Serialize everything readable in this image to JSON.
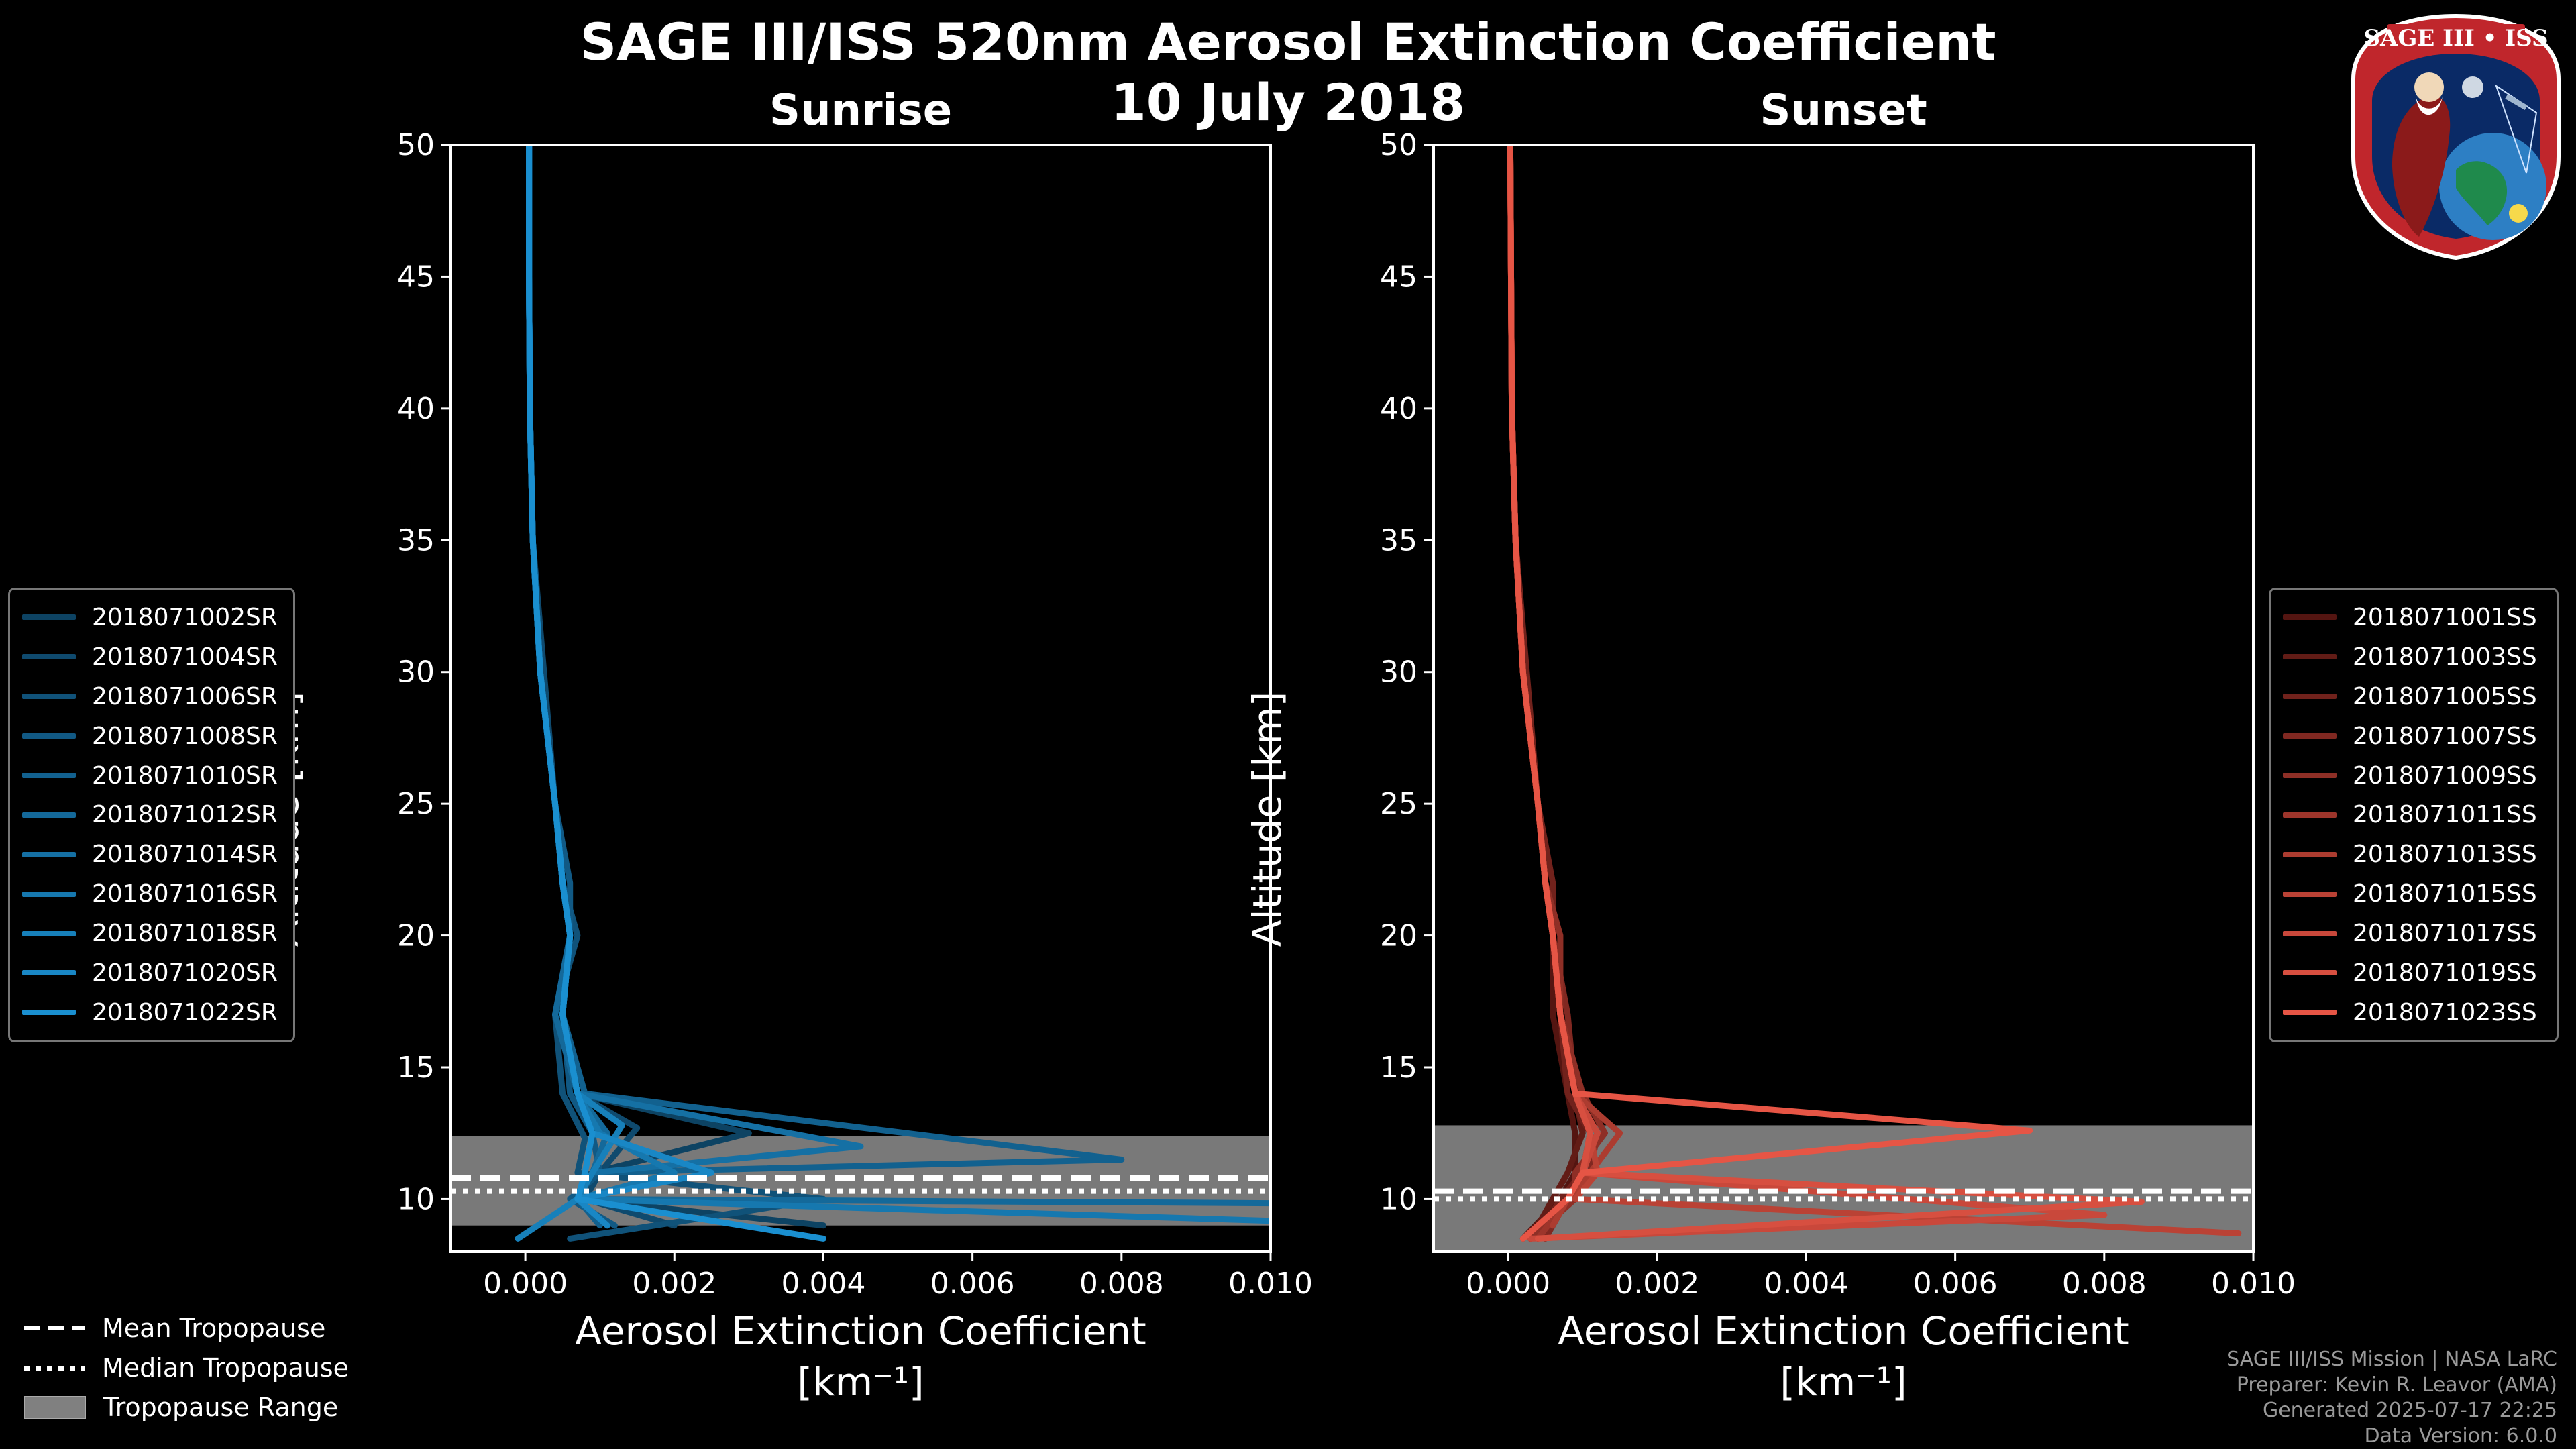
{
  "header": {
    "title": "SAGE III/ISS 520nm Aerosol Extinction Coefficient",
    "date": "10 July 2018"
  },
  "logo": {
    "text": "SAGE III • ISS"
  },
  "colors": {
    "sunrise": "#1a8fd0",
    "sunset": "#e65545",
    "tropopause_range": "#808080"
  },
  "chart_data": [
    {
      "type": "line",
      "title": "Sunrise",
      "xlabel": "Aerosol Extinction Coefficient",
      "xlabel_units": "[km⁻¹]",
      "ylabel": "Altitude [km]",
      "xlim": [
        -0.001,
        0.01
      ],
      "ylim": [
        8,
        50
      ],
      "xticks": [
        "0.000",
        "0.002",
        "0.004",
        "0.006",
        "0.008",
        "0.010"
      ],
      "yticks": [
        "10",
        "15",
        "20",
        "25",
        "30",
        "35",
        "40",
        "45",
        "50"
      ],
      "tropopause": {
        "mean": 10.8,
        "median": 10.3,
        "range": [
          9.0,
          12.4
        ]
      },
      "legend": [
        "2018071002SR",
        "2018071004SR",
        "2018071006SR",
        "2018071008SR",
        "2018071010SR",
        "2018071012SR",
        "2018071014SR",
        "2018071016SR",
        "2018071018SR",
        "2018071020SR",
        "2018071022SR"
      ],
      "series": [
        {
          "name": "2018071002SR",
          "x": [
            5e-05,
            5e-05,
            6e-05,
            0.0001,
            0.0002,
            0.0004,
            0.0005,
            0.0006,
            0.0004,
            0.0007,
            0.003,
            0.0009,
            0.0007,
            0.004
          ],
          "y": [
            50,
            45,
            40,
            35,
            30,
            25,
            22,
            20,
            17,
            14,
            12.5,
            11,
            10,
            9
          ]
        },
        {
          "name": "2018071004SR",
          "x": [
            5e-05,
            5e-05,
            6e-05,
            0.0001,
            0.00025,
            0.0004,
            0.0005,
            0.0006,
            0.0005,
            0.0007,
            0.0015,
            0.001,
            0.0008,
            0.002
          ],
          "y": [
            50,
            45,
            40,
            35,
            30,
            25,
            22,
            20,
            17,
            14,
            12.7,
            11,
            10,
            9
          ]
        },
        {
          "name": "2018071006SR",
          "x": [
            5e-05,
            5e-05,
            6e-05,
            0.0001,
            0.0002,
            0.0004,
            0.0005,
            0.0007,
            0.0004,
            0.0005,
            0.0008,
            0.0007,
            0.004,
            0.0006
          ],
          "y": [
            50,
            45,
            40,
            35,
            30,
            25,
            22,
            20,
            17,
            14,
            12.3,
            11,
            10,
            8.5
          ]
        },
        {
          "name": "2018071008SR",
          "x": [
            5e-05,
            5e-05,
            6e-05,
            0.0001,
            0.0002,
            0.0004,
            0.0006,
            0.0006,
            0.0005,
            0.0006,
            0.0009,
            0.001,
            0.0006,
            0.0012
          ],
          "y": [
            50,
            45,
            40,
            35,
            30,
            25,
            22,
            20,
            17,
            14,
            12.5,
            11,
            10,
            9
          ]
        },
        {
          "name": "2018071010SR",
          "x": [
            5e-05,
            5e-05,
            6e-05,
            0.0001,
            0.0002,
            0.0004,
            0.0005,
            0.0006,
            0.0005,
            0.0008,
            0.008,
            0.0009,
            0.0007,
            0.001
          ],
          "y": [
            50,
            45,
            40,
            35,
            30,
            25,
            22,
            20,
            17,
            14,
            11.5,
            11,
            10,
            9
          ]
        },
        {
          "name": "2018071012SR",
          "x": [
            5e-05,
            5e-05,
            6e-05,
            0.0001,
            0.0002,
            0.0004,
            0.0005,
            0.0006,
            0.0004,
            0.0007,
            0.0011,
            0.0009,
            0.0007,
            0.0125
          ],
          "y": [
            50,
            45,
            40,
            35,
            30,
            25,
            22,
            20,
            17,
            14,
            12.5,
            11,
            10,
            9.8
          ]
        },
        {
          "name": "2018071014SR",
          "x": [
            5e-05,
            5e-05,
            6e-05,
            0.0001,
            0.0002,
            0.0004,
            0.0005,
            0.0006,
            0.0005,
            0.0007,
            0.0045,
            0.0009,
            0.0007,
            0.0011
          ],
          "y": [
            50,
            45,
            40,
            35,
            30,
            25,
            22,
            20,
            17,
            14,
            12,
            11,
            10,
            9
          ]
        },
        {
          "name": "2018071016SR",
          "x": [
            5e-05,
            5e-05,
            6e-05,
            0.0001,
            0.0002,
            0.0004,
            0.0005,
            0.0006,
            0.0005,
            0.0007,
            0.001,
            0.002,
            0.0007,
            0.012
          ],
          "y": [
            50,
            45,
            40,
            35,
            30,
            25,
            22,
            20,
            17,
            14,
            12.5,
            11,
            10,
            9
          ]
        },
        {
          "name": "2018071018SR",
          "x": [
            5e-05,
            5e-05,
            6e-05,
            0.0001,
            0.0002,
            0.0004,
            0.0005,
            0.0006,
            0.0005,
            0.0007,
            0.0013,
            0.0009,
            0.0007,
            -0.0001
          ],
          "y": [
            50,
            45,
            40,
            35,
            30,
            25,
            22,
            20,
            17,
            14,
            12.8,
            11,
            10,
            8.5
          ]
        },
        {
          "name": "2018071020SR",
          "x": [
            5e-05,
            5e-05,
            6e-05,
            0.0001,
            0.0002,
            0.0004,
            0.0005,
            0.0006,
            0.0005,
            0.0007,
            0.0009,
            0.0025,
            0.0007,
            0.0011
          ],
          "y": [
            50,
            45,
            40,
            35,
            30,
            25,
            22,
            20,
            17,
            14,
            12.5,
            11,
            10,
            9
          ]
        },
        {
          "name": "2018071022SR",
          "x": [
            5e-05,
            5e-05,
            6e-05,
            0.0001,
            0.0002,
            0.0004,
            0.0005,
            0.0006,
            0.0005,
            0.0007,
            0.0009,
            0.0008,
            0.0007,
            0.004
          ],
          "y": [
            50,
            45,
            40,
            35,
            30,
            25,
            22,
            20,
            17,
            14,
            12.5,
            11,
            10,
            8.5
          ]
        }
      ]
    },
    {
      "type": "line",
      "title": "Sunset",
      "xlabel": "Aerosol Extinction Coefficient",
      "xlabel_units": "[km⁻¹]",
      "ylabel": "Altitude [km]",
      "xlim": [
        -0.001,
        0.01
      ],
      "ylim": [
        8,
        50
      ],
      "xticks": [
        "0.000",
        "0.002",
        "0.004",
        "0.006",
        "0.008",
        "0.010"
      ],
      "yticks": [
        "10",
        "15",
        "20",
        "25",
        "30",
        "35",
        "40",
        "45",
        "50"
      ],
      "tropopause": {
        "mean": 10.3,
        "median": 10.0,
        "range": [
          8.0,
          12.8
        ]
      },
      "legend": [
        "2018071001SS",
        "2018071003SS",
        "2018071005SS",
        "2018071007SS",
        "2018071009SS",
        "2018071011SS",
        "2018071013SS",
        "2018071015SS",
        "2018071017SS",
        "2018071019SS",
        "2018071023SS"
      ],
      "series": [
        {
          "name": "2018071001SS",
          "x": [
            3e-05,
            4e-05,
            5e-05,
            0.0001,
            0.0002,
            0.0004,
            0.0005,
            0.0006,
            0.0006,
            0.0008,
            0.0009,
            0.0009,
            0.0007,
            0.0002
          ],
          "y": [
            50,
            45,
            40,
            35,
            30,
            25,
            22,
            20,
            17,
            14,
            12.5,
            11,
            10,
            8.5
          ]
        },
        {
          "name": "2018071003SS",
          "x": [
            3e-05,
            4e-05,
            5e-05,
            0.0001,
            0.0002,
            0.0004,
            0.0005,
            0.0007,
            0.0007,
            0.0009,
            0.001,
            0.0008,
            0.0006,
            0.0003
          ],
          "y": [
            50,
            45,
            40,
            35,
            30,
            25,
            22,
            20,
            17,
            14,
            12.5,
            11,
            10,
            8.5
          ]
        },
        {
          "name": "2018071005SS",
          "x": [
            3e-05,
            4e-05,
            5e-05,
            0.0001,
            0.00025,
            0.0004,
            0.0006,
            0.0006,
            0.0007,
            0.0008,
            0.0011,
            0.001,
            0.0007,
            0.0004
          ],
          "y": [
            50,
            45,
            40,
            35,
            30,
            25,
            22,
            20,
            17,
            14,
            12.5,
            11,
            10,
            8.5
          ]
        },
        {
          "name": "2018071007SS",
          "x": [
            3e-05,
            4e-05,
            5e-05,
            0.0001,
            0.0002,
            0.0004,
            0.0005,
            0.0006,
            0.0008,
            0.0009,
            0.0012,
            0.0011,
            0.0008,
            0.0005
          ],
          "y": [
            50,
            45,
            40,
            35,
            30,
            25,
            22,
            20,
            17,
            14,
            12.5,
            11,
            10,
            8.5
          ]
        },
        {
          "name": "2018071009SS",
          "x": [
            3e-05,
            4e-05,
            5e-05,
            0.0001,
            0.0002,
            0.0004,
            0.0005,
            0.0007,
            0.0007,
            0.001,
            0.0013,
            0.0009,
            0.0009,
            0.0003
          ],
          "y": [
            50,
            45,
            40,
            35,
            30,
            25,
            22,
            20,
            17,
            14,
            12.5,
            11,
            10,
            8.5
          ]
        },
        {
          "name": "2018071011SS",
          "x": [
            3e-05,
            4e-05,
            5e-05,
            0.0001,
            0.0002,
            0.0004,
            0.0005,
            0.0006,
            0.0007,
            0.0009,
            0.0012,
            0.001,
            0.0008,
            0.0004
          ],
          "y": [
            50,
            45,
            40,
            35,
            30,
            25,
            22,
            20,
            17,
            14,
            12.5,
            11,
            10,
            8.5
          ]
        },
        {
          "name": "2018071013SS",
          "x": [
            3e-05,
            4e-05,
            5e-05,
            0.0001,
            0.0002,
            0.0004,
            0.0005,
            0.0006,
            0.0007,
            0.0009,
            0.0015,
            0.0011,
            0.0008,
            0.0006
          ],
          "y": [
            50,
            45,
            40,
            35,
            30,
            25,
            22,
            20,
            17,
            14,
            12.5,
            11,
            10,
            9
          ]
        },
        {
          "name": "2018071015SS",
          "x": [
            3e-05,
            4e-05,
            5e-05,
            0.0001,
            0.0002,
            0.0004,
            0.0005,
            0.0006,
            0.0007,
            0.0009,
            0.0011,
            0.0012,
            0.0009,
            0.0098
          ],
          "y": [
            50,
            45,
            40,
            35,
            30,
            25,
            22,
            20,
            17,
            14,
            12.5,
            11,
            10,
            8.7
          ]
        },
        {
          "name": "2018071017SS",
          "x": [
            3e-05,
            4e-05,
            5e-05,
            0.0001,
            0.0002,
            0.0004,
            0.0005,
            0.0006,
            0.0007,
            0.0009,
            0.0012,
            0.001,
            0.008,
            0.0003
          ],
          "y": [
            50,
            45,
            40,
            35,
            30,
            25,
            22,
            20,
            17,
            14,
            12.5,
            11,
            9.4,
            8.5
          ]
        },
        {
          "name": "2018071019SS",
          "x": [
            3e-05,
            4e-05,
            5e-05,
            0.0001,
            0.0002,
            0.0004,
            0.0005,
            0.0006,
            0.0007,
            0.0009,
            0.0011,
            0.001,
            0.0085,
            0.0004
          ],
          "y": [
            50,
            45,
            40,
            35,
            30,
            25,
            22,
            20,
            17,
            14,
            12.5,
            11,
            9.9,
            8.5
          ]
        },
        {
          "name": "2018071023SS",
          "x": [
            3e-05,
            4e-05,
            5e-05,
            0.0001,
            0.0002,
            0.0004,
            0.0005,
            0.0006,
            0.0007,
            0.0009,
            0.007,
            0.001,
            0.0008,
            0.0002
          ],
          "y": [
            50,
            45,
            40,
            35,
            30,
            25,
            22,
            20,
            17,
            14,
            12.6,
            11,
            10,
            8.5
          ]
        }
      ]
    }
  ],
  "bottom_legend": {
    "mean": "Mean Tropopause",
    "median": "Median Tropopause",
    "range": "Tropopause Range"
  },
  "credits": {
    "line1": "SAGE III/ISS Mission | NASA LaRC",
    "line2": "Preparer: Kevin R. Leavor (AMA)",
    "line3": "Generated 2025-07-17 22:25",
    "line4": "Data Version: 6.0.0"
  }
}
